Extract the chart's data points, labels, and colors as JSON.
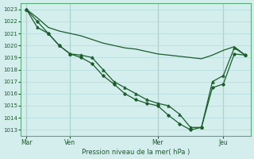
{
  "background_color": "#d4eeee",
  "grid_color": "#b8dede",
  "line_color": "#1a5c2a",
  "xlabel": "Pression niveau de la mer( hPa )",
  "ylim": [
    1012.5,
    1023.5
  ],
  "yticks": [
    1013,
    1014,
    1015,
    1016,
    1017,
    1018,
    1019,
    1020,
    1021,
    1022,
    1023
  ],
  "xtick_labels": [
    "Mar",
    "Ven",
    "Mer",
    "Jeu"
  ],
  "xtick_positions": [
    0,
    4,
    12,
    18
  ],
  "xlim": [
    -0.5,
    20.5
  ],
  "series1_x": [
    0,
    1,
    2,
    3,
    4,
    5,
    6,
    7,
    8,
    9,
    10,
    11,
    12,
    13,
    14,
    15,
    16,
    17,
    18,
    19,
    20
  ],
  "series1_y": [
    1023.0,
    1022.3,
    1021.5,
    1021.2,
    1021.0,
    1020.8,
    1020.5,
    1020.2,
    1020.0,
    1019.8,
    1019.7,
    1019.5,
    1019.3,
    1019.2,
    1019.1,
    1019.0,
    1018.9,
    1019.2,
    1019.6,
    1019.9,
    1019.2
  ],
  "series2_x": [
    0,
    1,
    2,
    3,
    4,
    5,
    6,
    7,
    8,
    9,
    10,
    11,
    12,
    13,
    14,
    15,
    16,
    17,
    18,
    19,
    20
  ],
  "series2_y": [
    1023.0,
    1022.0,
    1021.0,
    1020.0,
    1019.3,
    1019.0,
    1018.5,
    1017.5,
    1016.8,
    1016.0,
    1015.5,
    1015.2,
    1015.0,
    1014.2,
    1013.5,
    1013.0,
    1013.2,
    1016.5,
    1016.8,
    1019.3,
    1019.2
  ],
  "series3_x": [
    0,
    1,
    2,
    3,
    4,
    5,
    6,
    7,
    8,
    9,
    10,
    11,
    12,
    13,
    14,
    15,
    16,
    17,
    18,
    19,
    20
  ],
  "series3_y": [
    1023.0,
    1021.5,
    1021.0,
    1020.0,
    1019.3,
    1019.2,
    1019.0,
    1018.0,
    1017.0,
    1016.5,
    1016.0,
    1015.5,
    1015.2,
    1015.0,
    1014.3,
    1013.2,
    1013.2,
    1017.0,
    1017.5,
    1019.8,
    1019.2
  ],
  "vline_color": "#5aaa7a",
  "spine_color": "#5aaa7a"
}
